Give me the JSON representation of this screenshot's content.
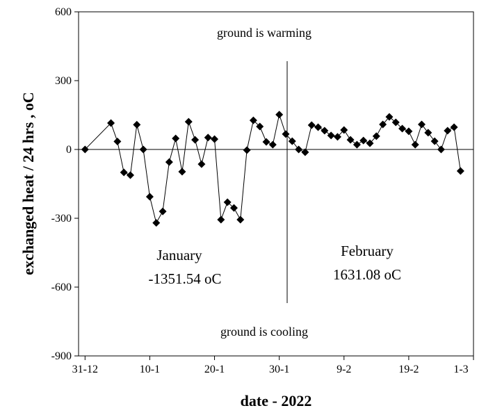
{
  "chart_data": {
    "type": "line",
    "xlabel": "date - 2022",
    "ylabel": "exchanged heat / 24 hrs  , oC",
    "x": [
      0,
      4,
      5,
      6,
      7,
      8,
      9,
      10,
      11,
      12,
      13,
      14,
      15,
      16,
      17,
      18,
      19,
      20,
      21,
      22,
      23,
      24,
      25,
      26,
      27,
      28,
      29,
      30,
      31,
      32,
      33,
      34,
      35,
      36,
      37,
      38,
      39,
      40,
      41,
      42,
      43,
      44,
      45,
      46,
      47,
      48,
      49,
      50,
      51,
      52,
      53,
      54,
      55,
      56,
      57,
      58
    ],
    "series": [
      {
        "name": "exchanged heat",
        "color": "#000000",
        "values": [
          0,
          115,
          35,
          -100,
          -112,
          108,
          0,
          -206,
          -320,
          -270,
          -55,
          48,
          -97,
          121,
          42,
          -64,
          52,
          45,
          -306,
          -230,
          -255,
          -306,
          -3,
          127,
          100,
          33,
          21,
          152,
          67,
          36,
          0,
          -12,
          106,
          97,
          82,
          61,
          55,
          85,
          42,
          21,
          39,
          27,
          58,
          109,
          142,
          118,
          91,
          79,
          21,
          109,
          73,
          36,
          0,
          82,
          97,
          -94
        ]
      }
    ],
    "xlim": [
      -1,
      60
    ],
    "xticks": [
      {
        "value": 0,
        "label": "31-12"
      },
      {
        "value": 10,
        "label": "10-1"
      },
      {
        "value": 20,
        "label": "20-1"
      },
      {
        "value": 30,
        "label": "30-1"
      },
      {
        "value": 40,
        "label": "9-2"
      },
      {
        "value": 50,
        "label": "19-2"
      },
      {
        "value": 60,
        "label": "1-3"
      }
    ],
    "ylim": [
      -900,
      600
    ],
    "yticks": [
      600,
      300,
      0,
      -300,
      -600,
      -900
    ],
    "annotations": [
      "ground is warming",
      "ground is cooling",
      "January",
      "-1351.54 oC",
      "February",
      "1631.08 oC"
    ]
  }
}
